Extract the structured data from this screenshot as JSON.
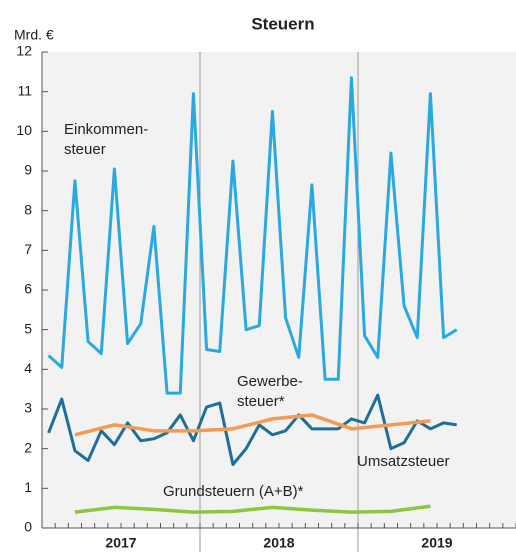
{
  "chart_data": {
    "type": "line",
    "title": "Steuern",
    "y_label": "Mrd. €",
    "xlim": [
      0,
      36
    ],
    "xticks": [
      {
        "value": 6,
        "label": "2017"
      },
      {
        "value": 18,
        "label": "2018"
      },
      {
        "value": 30,
        "label": "2019"
      }
    ],
    "ylim": [
      0,
      12
    ],
    "yticks": [
      0,
      1,
      2,
      3,
      4,
      5,
      6,
      7,
      8,
      9,
      10,
      11,
      12
    ],
    "series": [
      {
        "name": "Einkommensteuer",
        "color": "#2aa9df",
        "x": [
          0.5,
          1.5,
          2.5,
          3.5,
          4.5,
          5.5,
          6.5,
          7.5,
          8.5,
          9.5,
          10.5,
          11.5,
          12.5,
          13.5,
          14.5,
          15.5,
          16.5,
          17.5,
          18.5,
          19.5,
          20.5,
          21.5,
          22.5,
          23.5,
          24.5,
          25.5,
          26.5,
          27.5,
          28.5,
          29.5,
          30.5,
          31.5
        ],
        "values": [
          4.35,
          4.05,
          8.75,
          4.7,
          4.4,
          9.05,
          4.65,
          5.15,
          7.6,
          3.4,
          3.4,
          10.95,
          4.5,
          4.45,
          9.25,
          5.0,
          5.1,
          10.5,
          5.3,
          4.3,
          8.65,
          3.75,
          3.75,
          11.35,
          4.85,
          4.3,
          9.45,
          5.6,
          4.8,
          10.95,
          4.8,
          5.0
        ]
      },
      {
        "name": "Umsatzsteuer",
        "color": "#1d6e9a",
        "x": [
          0.5,
          1.5,
          2.5,
          3.5,
          4.5,
          5.5,
          6.5,
          7.5,
          8.5,
          9.5,
          10.5,
          11.5,
          12.5,
          13.5,
          14.5,
          15.5,
          16.5,
          17.5,
          18.5,
          19.5,
          20.5,
          21.5,
          22.5,
          23.5,
          24.5,
          25.5,
          26.5,
          27.5,
          28.5,
          29.5,
          30.5,
          31.5
        ],
        "values": [
          2.4,
          3.25,
          1.95,
          1.7,
          2.45,
          2.1,
          2.65,
          2.2,
          2.25,
          2.4,
          2.85,
          2.2,
          3.05,
          3.15,
          1.6,
          2.0,
          2.6,
          2.35,
          2.45,
          2.85,
          2.5,
          2.5,
          2.5,
          2.75,
          2.65,
          3.35,
          2.0,
          2.15,
          2.7,
          2.5,
          2.65,
          2.6
        ]
      },
      {
        "name": "Gewerbesteuer*",
        "color": "#f39b55",
        "x": [
          2.5,
          5.5,
          8.5,
          11.5,
          14.5,
          17.5,
          20.5,
          23.5,
          26.5,
          29.5
        ],
        "values": [
          2.35,
          2.6,
          2.45,
          2.45,
          2.5,
          2.75,
          2.85,
          2.5,
          2.6,
          2.7
        ]
      },
      {
        "name": "Grundsteuern (A+B)*",
        "color": "#8cc63f",
        "x": [
          2.5,
          5.5,
          8.5,
          11.5,
          14.5,
          17.5,
          20.5,
          23.5,
          26.5,
          29.5
        ],
        "values": [
          0.4,
          0.52,
          0.47,
          0.4,
          0.42,
          0.52,
          0.45,
          0.4,
          0.42,
          0.55
        ]
      }
    ],
    "annotations": [
      {
        "lines": [
          "Einkommen-",
          "steuer"
        ]
      },
      {
        "lines": [
          "Gewerbe-",
          "steuer*"
        ]
      },
      {
        "lines": [
          "Umsatzsteuer"
        ]
      },
      {
        "lines": [
          "Grundsteuern (A+B)*"
        ]
      }
    ]
  }
}
